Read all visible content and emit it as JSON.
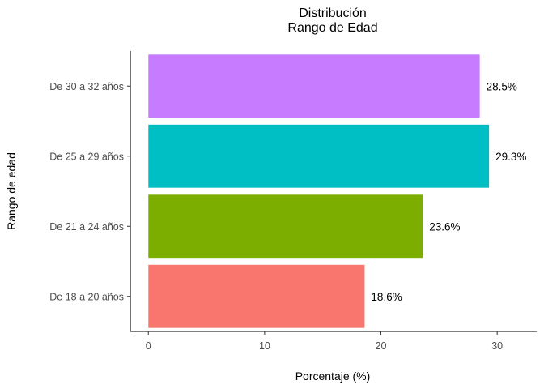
{
  "chart_data": {
    "type": "bar",
    "orientation": "horizontal",
    "title": "Distribución",
    "subtitle": "Rango de Edad",
    "xlabel": "Porcentaje (%)",
    "ylabel": "Rango de edad",
    "categories": [
      "De 18 a 20 años",
      "De 21 a 24 años",
      "De 25 a 29 años",
      "De 30 a 32 años"
    ],
    "values": [
      18.6,
      23.6,
      29.3,
      28.5
    ],
    "value_labels": [
      "18.6%",
      "23.6%",
      "29.3%",
      "28.5%"
    ],
    "colors": [
      "#F8766D",
      "#7CAE00",
      "#00BFC4",
      "#C77CFF"
    ],
    "xticks": [
      0,
      10,
      20,
      30
    ],
    "xtick_labels": [
      "0",
      "10",
      "20",
      "30"
    ],
    "xlim": [
      -1.55,
      33.4
    ],
    "grid": false,
    "legend": "none"
  }
}
